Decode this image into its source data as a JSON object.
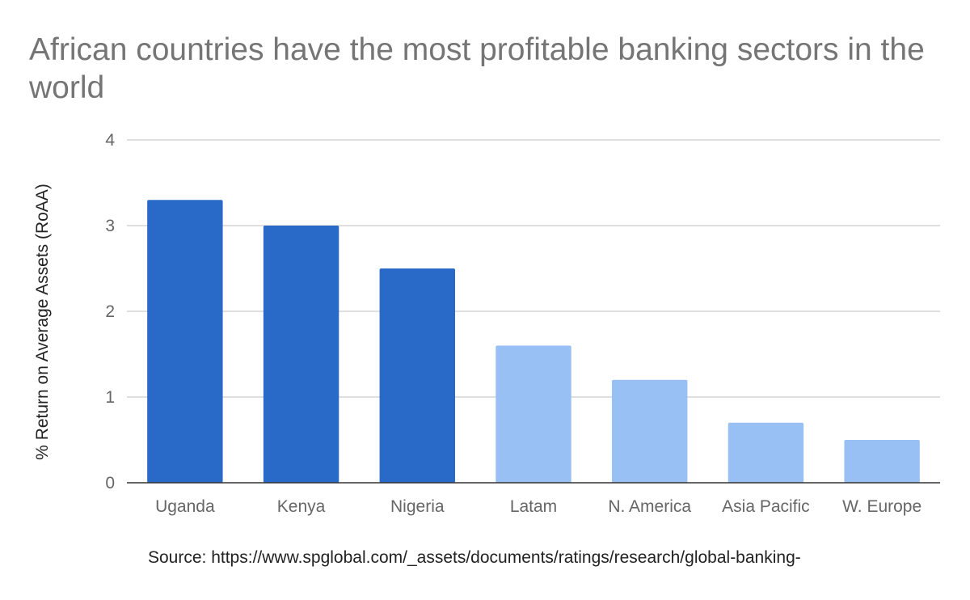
{
  "chart_data": {
    "type": "bar",
    "title": "African countries have the most profitable banking sectors in the world",
    "xlabel": "",
    "ylabel": "% Return on Average Assets (RoAA)",
    "ylim": [
      0,
      4
    ],
    "yticks": [
      0,
      1,
      2,
      3,
      4
    ],
    "grid": true,
    "categories": [
      "Uganda",
      "Kenya",
      "Nigeria",
      "Latam",
      "N. America",
      "Asia Pacific",
      "W. Europe"
    ],
    "values": [
      3.3,
      3.0,
      2.5,
      1.6,
      1.2,
      0.7,
      0.5
    ],
    "bar_colors": [
      "#2969c7",
      "#2969c7",
      "#2969c7",
      "#99c0f5",
      "#99c0f5",
      "#99c0f5",
      "#99c0f5"
    ]
  },
  "source": "Source: https://www.spglobal.com/_assets/documents/ratings/research/global-banking-"
}
